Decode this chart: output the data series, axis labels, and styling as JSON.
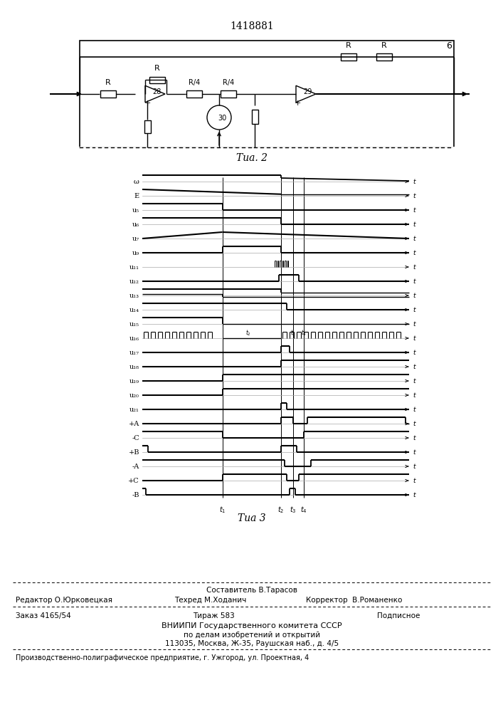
{
  "patent_number": "1418881",
  "background_color": "#ffffff",
  "line_color": "#000000",
  "fig2_label": "Τиа. 2",
  "fig3_label": "Τиа 3",
  "fig2": {
    "block_number": "6",
    "op_amp1": "28",
    "op_amp2": "29",
    "transistor": "30"
  },
  "fig3": {
    "signals": [
      "ω",
      "E",
      "u₅",
      "u₆",
      "u₇",
      "u₉",
      "u₁₁",
      "u₁₂",
      "u₁₃",
      "u₁₄",
      "u₁₅",
      "u₁₆",
      "u₁₇",
      "u₁₈",
      "u₁₉",
      "u₂₀",
      "u₂₁",
      "+A",
      "-C",
      "+B",
      "-A",
      "+C",
      "-B"
    ],
    "time_labels": [
      "t₁",
      "t₂",
      "t₃",
      "t₄"
    ]
  },
  "footer": {
    "composer": "Составитель В.Тарасов",
    "editor": "Редактор О.Юрковецкая",
    "tekhred": "Техред М.Ходанич",
    "korrektor": "Корректор  В.Романенко",
    "order": "Заказ 4165/54",
    "tirazh": "Тираж 583",
    "podpisnoe": "Подписное",
    "vnipi1": "ВНИИПИ Государственного комитета СССР",
    "vnipi2": "по делам изобретений и открытий",
    "address": "113035, Москва, Ж-35, Раушская наб., д. 4/5",
    "factory": "Производственно-полиграфическое предприятие, г. Ужгород, ул. Проектная, 4"
  }
}
